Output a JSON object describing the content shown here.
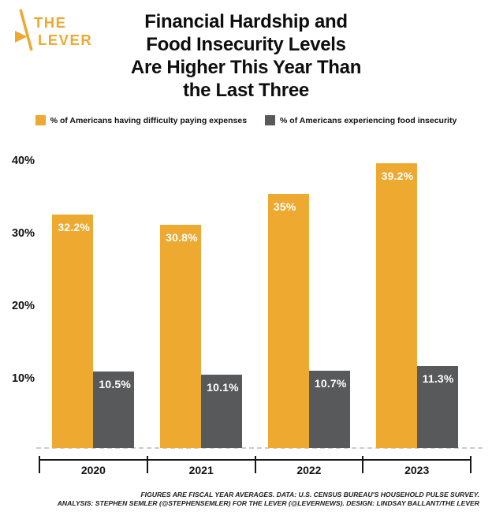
{
  "brand": {
    "line1": "THE",
    "line2": "LEVER",
    "color": "#EDA930"
  },
  "title": {
    "text": "Financial Hardship and\nFood Insecurity Levels\nAre Higher This Year Than\nthe Last Three"
  },
  "chart_data": {
    "type": "bar",
    "title": "Financial Hardship and Food Insecurity Levels Are Higher This Year Than the Last Three",
    "categories": [
      "2020",
      "2021",
      "2022",
      "2023"
    ],
    "series": [
      {
        "name": "% of Americans having difficulty paying expenses",
        "color": "#EDA930",
        "values": [
          32.2,
          30.8,
          35,
          39.2
        ],
        "value_labels": [
          "32.2%",
          "30.8%",
          "35%",
          "39.2%"
        ]
      },
      {
        "name": "% of Americans experiencing food insecurity",
        "color": "#58595B",
        "values": [
          10.5,
          10.1,
          10.7,
          11.3
        ],
        "value_labels": [
          "10.5%",
          "10.1%",
          "10.7%",
          "11.3%"
        ]
      }
    ],
    "y_ticks": [
      {
        "label": "10%",
        "value": 10
      },
      {
        "label": "20%",
        "value": 20
      },
      {
        "label": "30%",
        "value": 30
      },
      {
        "label": "40%",
        "value": 40
      }
    ],
    "ylim": [
      0,
      41.5
    ],
    "xlabel": "",
    "ylabel": "",
    "grid": "dashed zero baseline only",
    "legend_position": "top",
    "value_label_color": "#ffffff"
  },
  "footer": {
    "line1": "FIGURES ARE FISCAL YEAR AVERAGES. DATA: U.S. CENSUS BUREAU'S HOUSEHOLD PULSE SURVEY.",
    "line2": "ANALYSIS: STEPHEN SEMLER (@STEPHENSEMLER) FOR THE LEVER (@LEVERNEWS). DESIGN: LINDSAY BALLANT/THE LEVER"
  }
}
